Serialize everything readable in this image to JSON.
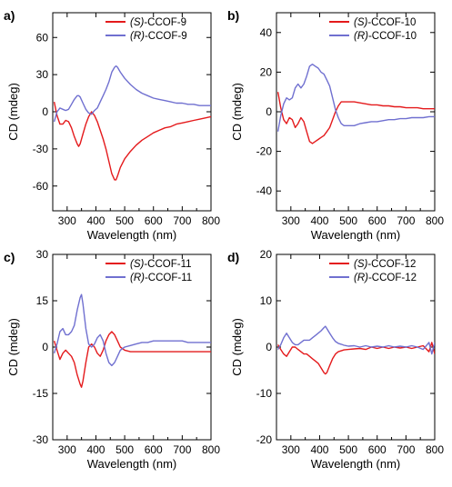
{
  "figure": {
    "background": "#ffffff",
    "colors": {
      "S": "#e41a1c",
      "R": "#7070d0"
    }
  },
  "chart_data": [
    {
      "type": "line",
      "panel_label": "a)",
      "xlabel": "Wavelength (nm)",
      "ylabel": "CD (mdeg)",
      "xlim": [
        250,
        800
      ],
      "ylim": [
        -80,
        80
      ],
      "xticks": [
        "300",
        "400",
        "500",
        "600",
        "700",
        "800"
      ],
      "yticks": [
        "-60",
        "-30",
        "0",
        "30",
        "60"
      ],
      "xtick_values": [
        300,
        400,
        500,
        600,
        700,
        800
      ],
      "ytick_values": [
        -60,
        -30,
        0,
        30,
        60
      ],
      "legend_position": "top-right",
      "series": [
        {
          "name_prefix": "(S)",
          "name_suffix": "-CCOF-9",
          "color": "#e41a1c",
          "x": [
            255,
            265,
            275,
            285,
            295,
            305,
            315,
            325,
            335,
            340,
            345,
            355,
            365,
            375,
            385,
            395,
            405,
            415,
            425,
            435,
            445,
            455,
            465,
            470,
            475,
            485,
            500,
            520,
            540,
            560,
            580,
            600,
            620,
            640,
            660,
            680,
            700,
            720,
            740,
            760,
            780,
            800
          ],
          "y": [
            8,
            -3,
            -10,
            -10,
            -7,
            -8,
            -13,
            -20,
            -26,
            -28,
            -26,
            -18,
            -10,
            -4,
            0,
            -3,
            -8,
            -15,
            -22,
            -30,
            -40,
            -50,
            -55,
            -55,
            -52,
            -45,
            -38,
            -32,
            -27,
            -23,
            -20,
            -17,
            -15,
            -13,
            -12,
            -10,
            -9,
            -8,
            -7,
            -6,
            -5,
            -4
          ]
        },
        {
          "name_prefix": "(R)",
          "name_suffix": "-CCOF-9",
          "color": "#7070d0",
          "x": [
            255,
            265,
            275,
            285,
            295,
            305,
            315,
            325,
            335,
            340,
            345,
            355,
            365,
            375,
            385,
            395,
            405,
            415,
            425,
            435,
            445,
            455,
            465,
            470,
            475,
            485,
            500,
            520,
            540,
            560,
            580,
            600,
            620,
            640,
            660,
            680,
            700,
            720,
            740,
            760,
            780,
            800
          ],
          "y": [
            -8,
            0,
            3,
            2,
            1,
            2,
            6,
            10,
            13,
            13,
            12,
            7,
            2,
            -1,
            -2,
            1,
            3,
            8,
            13,
            18,
            24,
            32,
            36,
            37,
            36,
            32,
            27,
            22,
            18,
            15,
            13,
            11,
            10,
            9,
            8,
            7,
            7,
            6,
            6,
            5,
            5,
            5
          ]
        }
      ]
    },
    {
      "type": "line",
      "panel_label": "b)",
      "xlabel": "Wavelength (nm)",
      "ylabel": "CD (mdeg)",
      "xlim": [
        250,
        800
      ],
      "ylim": [
        -50,
        50
      ],
      "xticks": [
        "300",
        "400",
        "500",
        "600",
        "700",
        "800"
      ],
      "yticks": [
        "-40",
        "-20",
        "0",
        "20",
        "40"
      ],
      "xtick_values": [
        300,
        400,
        500,
        600,
        700,
        800
      ],
      "ytick_values": [
        -40,
        -20,
        0,
        20,
        40
      ],
      "legend_position": "top-right",
      "series": [
        {
          "name_prefix": "(S)",
          "name_suffix": "-CCOF-10",
          "color": "#e41a1c",
          "x": [
            255,
            265,
            275,
            285,
            295,
            305,
            315,
            325,
            335,
            345,
            355,
            365,
            375,
            385,
            395,
            405,
            415,
            425,
            435,
            445,
            455,
            465,
            475,
            485,
            500,
            520,
            540,
            560,
            580,
            600,
            620,
            640,
            660,
            680,
            700,
            720,
            740,
            760,
            780,
            800
          ],
          "y": [
            10,
            2,
            -4,
            -6,
            -3,
            -4,
            -8,
            -6,
            -3,
            -5,
            -10,
            -15,
            -16,
            -15,
            -14,
            -13,
            -12,
            -10,
            -8,
            -4,
            0,
            3,
            5,
            5,
            5,
            5,
            4.5,
            4,
            3.5,
            3.5,
            3,
            3,
            2.5,
            2.5,
            2,
            2,
            2,
            1.5,
            1.5,
            1.5
          ]
        },
        {
          "name_prefix": "(R)",
          "name_suffix": "-CCOF-10",
          "color": "#7070d0",
          "x": [
            255,
            265,
            275,
            285,
            295,
            305,
            315,
            325,
            335,
            345,
            355,
            365,
            375,
            385,
            395,
            405,
            415,
            425,
            435,
            445,
            455,
            465,
            475,
            485,
            500,
            520,
            540,
            560,
            580,
            600,
            620,
            640,
            660,
            680,
            700,
            720,
            740,
            760,
            780,
            800
          ],
          "y": [
            -10,
            -2,
            4,
            7,
            6,
            7,
            12,
            14,
            12,
            14,
            18,
            23,
            24,
            23,
            22,
            20,
            19,
            16,
            13,
            7,
            1,
            -3,
            -6,
            -7,
            -7,
            -7,
            -6,
            -5.5,
            -5,
            -5,
            -4.5,
            -4,
            -4,
            -3.5,
            -3.5,
            -3,
            -3,
            -3,
            -2.5,
            -2.5
          ]
        }
      ]
    },
    {
      "type": "line",
      "panel_label": "c)",
      "xlabel": "Wavelength (nm)",
      "ylabel": "CD (mdeg)",
      "xlim": [
        250,
        800
      ],
      "ylim": [
        -30,
        30
      ],
      "xticks": [
        "300",
        "400",
        "500",
        "600",
        "700",
        "800"
      ],
      "yticks": [
        "-30",
        "-15",
        "0",
        "15",
        "30"
      ],
      "xtick_values": [
        300,
        400,
        500,
        600,
        700,
        800
      ],
      "ytick_values": [
        -30,
        -15,
        0,
        15,
        30
      ],
      "legend_position": "top-right",
      "series": [
        {
          "name_prefix": "(S)",
          "name_suffix": "-CCOF-11",
          "color": "#e41a1c",
          "x": [
            255,
            265,
            275,
            285,
            295,
            305,
            315,
            325,
            335,
            345,
            350,
            355,
            365,
            375,
            385,
            395,
            405,
            415,
            425,
            435,
            445,
            455,
            465,
            475,
            485,
            500,
            520,
            540,
            560,
            580,
            600,
            620,
            640,
            660,
            680,
            700,
            720,
            740,
            760,
            780,
            800
          ],
          "y": [
            2,
            -1,
            -4,
            -2,
            -1,
            -2,
            -3,
            -5,
            -9,
            -12,
            -13,
            -11,
            -5,
            0,
            1,
            0,
            -2,
            -3,
            -1,
            2,
            4,
            5,
            4,
            2,
            0,
            -1,
            -1.5,
            -1.5,
            -1.5,
            -1.5,
            -1.5,
            -1.5,
            -1.5,
            -1.5,
            -1.5,
            -1.5,
            -1.5,
            -1.5,
            -1.5,
            -1.5,
            -1.5
          ]
        },
        {
          "name_prefix": "(R)",
          "name_suffix": "-CCOF-11",
          "color": "#7070d0",
          "x": [
            255,
            265,
            275,
            285,
            295,
            305,
            315,
            325,
            335,
            345,
            350,
            355,
            365,
            375,
            385,
            395,
            405,
            415,
            425,
            435,
            445,
            455,
            465,
            475,
            485,
            500,
            520,
            540,
            560,
            580,
            600,
            620,
            640,
            660,
            680,
            700,
            720,
            740,
            760,
            780,
            800
          ],
          "y": [
            -2,
            1,
            5,
            6,
            4,
            4,
            5,
            7,
            12,
            16,
            17,
            14,
            6,
            1,
            0,
            1,
            3,
            4,
            2,
            -2,
            -5,
            -6,
            -5,
            -3,
            -1,
            0,
            0.5,
            1,
            1.5,
            1.5,
            2,
            2,
            2,
            2,
            2,
            2,
            1.5,
            1.5,
            1.5,
            1.5,
            1.5
          ]
        }
      ]
    },
    {
      "type": "line",
      "panel_label": "d)",
      "xlabel": "Wavelength (nm)",
      "ylabel": "CD (mdeg)",
      "xlim": [
        250,
        800
      ],
      "ylim": [
        -20,
        20
      ],
      "xticks": [
        "300",
        "400",
        "500",
        "600",
        "700",
        "800"
      ],
      "yticks": [
        "-20",
        "-10",
        "0",
        "10",
        "20"
      ],
      "xtick_values": [
        300,
        400,
        500,
        600,
        700,
        800
      ],
      "ytick_values": [
        -20,
        -10,
        0,
        10,
        20
      ],
      "legend_position": "top-right",
      "series": [
        {
          "name_prefix": "(S)",
          "name_suffix": "-CCOF-12",
          "color": "#e41a1c",
          "x": [
            255,
            265,
            275,
            285,
            295,
            305,
            315,
            325,
            335,
            345,
            355,
            365,
            375,
            385,
            395,
            405,
            415,
            420,
            425,
            435,
            445,
            455,
            465,
            475,
            485,
            500,
            520,
            540,
            560,
            580,
            600,
            620,
            640,
            660,
            680,
            700,
            720,
            740,
            760,
            780,
            790,
            800
          ],
          "y": [
            0.5,
            -0.5,
            -1.5,
            -2,
            -1,
            0,
            0,
            -0.5,
            -1,
            -1.5,
            -1.5,
            -2,
            -2.5,
            -3,
            -3.5,
            -4.5,
            -5.5,
            -5.8,
            -5.5,
            -4,
            -2.5,
            -1.5,
            -1,
            -0.8,
            -0.6,
            -0.5,
            -0.4,
            -0.3,
            -0.5,
            0,
            -0.3,
            0,
            -0.3,
            0,
            -0.2,
            0,
            -0.3,
            0,
            0.3,
            -1,
            1,
            -1.5
          ]
        },
        {
          "name_prefix": "(R)",
          "name_suffix": "-CCOF-12",
          "color": "#7070d0",
          "x": [
            255,
            265,
            275,
            285,
            295,
            305,
            315,
            325,
            335,
            345,
            355,
            365,
            375,
            385,
            395,
            405,
            415,
            420,
            425,
            435,
            445,
            455,
            465,
            475,
            485,
            500,
            520,
            540,
            560,
            580,
            600,
            620,
            640,
            660,
            680,
            700,
            720,
            740,
            760,
            780,
            790,
            800
          ],
          "y": [
            -0.5,
            0.5,
            2,
            3,
            2,
            1,
            0.5,
            0.5,
            1,
            1.5,
            1.5,
            1.5,
            2,
            2.5,
            3,
            3.5,
            4.2,
            4.5,
            4,
            3,
            2,
            1.2,
            0.8,
            0.6,
            0.4,
            0.2,
            0.3,
            0,
            0.3,
            0,
            0.2,
            0,
            0.3,
            0,
            0.2,
            0,
            0.3,
            0,
            -0.5,
            1,
            -1.5,
            1
          ]
        }
      ]
    }
  ]
}
